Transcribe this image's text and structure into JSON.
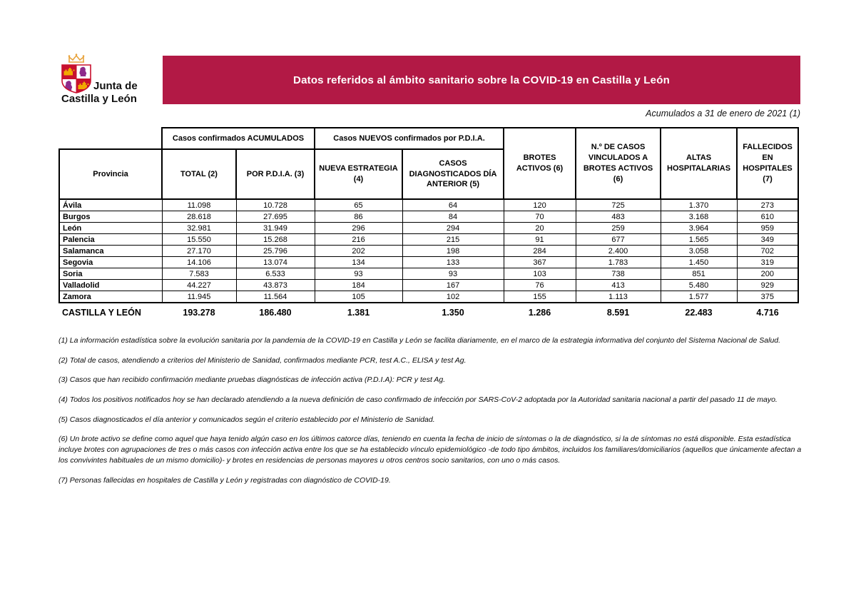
{
  "logo": {
    "line1": "Junta de",
    "line2": "Castilla y León"
  },
  "banner": {
    "title": "Datos referidos al ámbito sanitario sobre la COVID-19 en Castilla y León",
    "bg": "#B21945"
  },
  "subtitle": "Acumulados a 31 de enero de 2021 (1)",
  "table": {
    "group_headers": {
      "accumulated": "Casos confirmados ACUMULADOS",
      "new_pdia": "Casos NUEVOS confirmados por P.D.I.A."
    },
    "columns": [
      "Provincia",
      "TOTAL (2)",
      "POR P.D.I.A. (3)",
      "NUEVA ESTRATEGIA (4)",
      "CASOS DIAGNOSTICADOS DÍA ANTERIOR (5)",
      "BROTES ACTIVOS (6)",
      "N.º DE CASOS VINCULADOS A BROTES ACTIVOS (6)",
      "ALTAS HOSPITALARIAS",
      "FALLECIDOS EN HOSPITALES (7)"
    ],
    "rows": [
      {
        "provincia": "Ávila",
        "values": [
          "11.098",
          "10.728",
          "65",
          "64",
          "120",
          "725",
          "1.370",
          "273"
        ]
      },
      {
        "provincia": "Burgos",
        "values": [
          "28.618",
          "27.695",
          "86",
          "84",
          "70",
          "483",
          "3.168",
          "610"
        ]
      },
      {
        "provincia": "León",
        "values": [
          "32.981",
          "31.949",
          "296",
          "294",
          "20",
          "259",
          "3.964",
          "959"
        ]
      },
      {
        "provincia": "Palencia",
        "values": [
          "15.550",
          "15.268",
          "216",
          "215",
          "91",
          "677",
          "1.565",
          "349"
        ]
      },
      {
        "provincia": "Salamanca",
        "values": [
          "27.170",
          "25.796",
          "202",
          "198",
          "284",
          "2.400",
          "3.058",
          "702"
        ]
      },
      {
        "provincia": "Segovia",
        "values": [
          "14.106",
          "13.074",
          "134",
          "133",
          "367",
          "1.783",
          "1.450",
          "319"
        ]
      },
      {
        "provincia": "Soria",
        "values": [
          "7.583",
          "6.533",
          "93",
          "93",
          "103",
          "738",
          "851",
          "200"
        ]
      },
      {
        "provincia": "Valladolid",
        "values": [
          "44.227",
          "43.873",
          "184",
          "167",
          "76",
          "413",
          "5.480",
          "929"
        ]
      },
      {
        "provincia": "Zamora",
        "values": [
          "11.945",
          "11.564",
          "105",
          "102",
          "155",
          "1.113",
          "1.577",
          "375"
        ]
      }
    ],
    "total": {
      "label": "CASTILLA Y LEÓN",
      "values": [
        "193.278",
        "186.480",
        "1.381",
        "1.350",
        "1.286",
        "8.591",
        "22.483",
        "4.716"
      ]
    }
  },
  "footnotes": [
    "(1) La información estadística sobre la evolución sanitaria por la pandemia de la COVID-19 en Castilla y León se facilita diariamente, en el marco de la estrategia informativa del conjunto del Sistema Nacional de Salud.",
    "(2) Total de casos, atendiendo a criterios del Ministerio de Sanidad, confirmados mediante PCR, test A.C., ELISA y test Ag.",
    "(3) Casos que han recibido confirmación mediante pruebas diagnósticas de infección activa (P.D.I.A): PCR y test Ag.",
    "(4) Todos los positivos notificados hoy se han declarado atendiendo a la nueva definición de caso confirmado de infección por SARS-CoV-2 adoptada por la Autoridad sanitaria nacional a partir del pasado 11 de mayo.",
    "(5) Casos diagnosticados el día anterior y comunicados según el criterio establecido por el Ministerio de Sanidad.",
    "(6) Un brote activo se define como aquel que haya tenido algún caso en los últimos catorce días, teniendo en cuenta la fecha de inicio de síntomas o la de diagnóstico, si la de síntomas no está disponible. Esta estadística incluye brotes con agrupaciones de tres o más casos con infección activa entre los que se ha establecido vínculo epidemiológico -de todo tipo ámbitos, incluidos los familiares/domiciliarios (aquellos que únicamente afectan a los convivintes habituales de un mismo domicilio)- y brotes en residencias de personas mayores u otros centros socio sanitarios, con uno o más casos.",
    "(7) Personas fallecidas en hospitales de Castilla y León y registradas con diagnóstico de COVID-19."
  ]
}
